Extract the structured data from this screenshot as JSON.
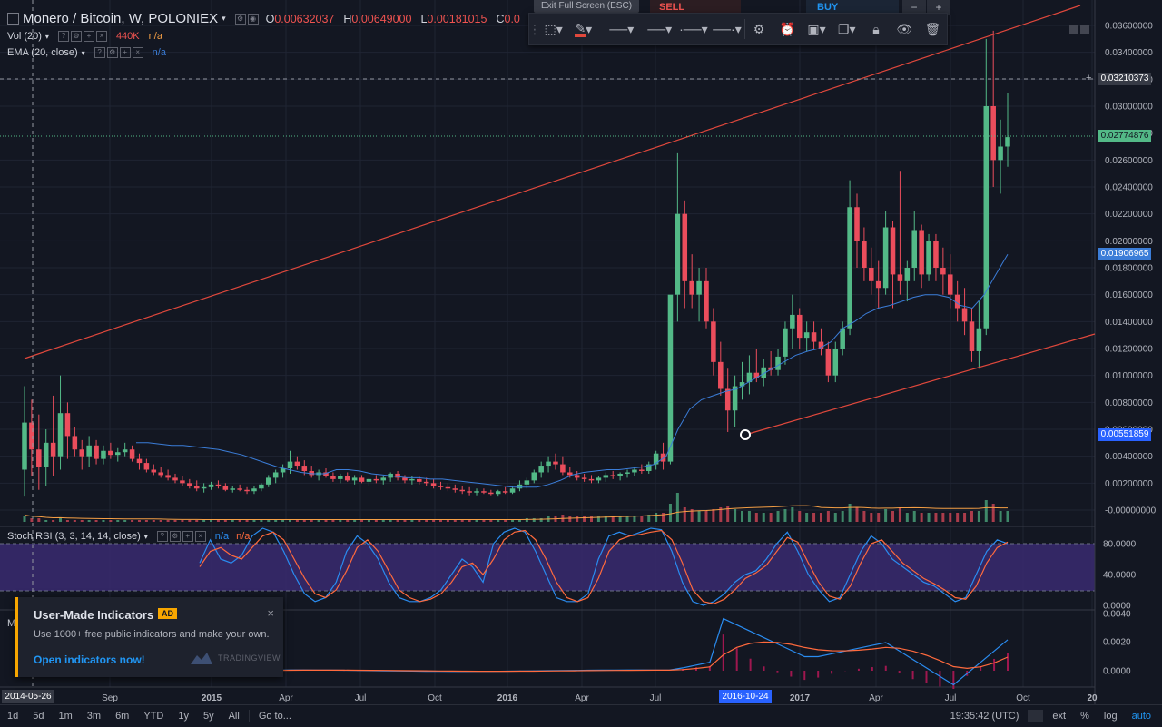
{
  "symbol": {
    "title": "Monero / Bitcoin, W, POLONIEX",
    "o_label": "O",
    "o": "0.00632037",
    "h_label": "H",
    "h": "0.00649000",
    "l_label": "L",
    "l": "0.00181015",
    "c_label": "C",
    "c": "0.0"
  },
  "vol_legend": {
    "label": "Vol (20)",
    "value": "440K",
    "na": "n/a"
  },
  "ema_legend": {
    "label": "EMA (20, close)",
    "na": "n/a"
  },
  "stoch_legend": {
    "label": "Stoch RSI (3, 3, 14, 14, close)",
    "v1": "n/a",
    "v2": "n/a"
  },
  "macd_legend": {
    "label": "M"
  },
  "top_buttons": {
    "exit_fullscreen": "Exit Full Screen (ESC)",
    "sell": "SELL",
    "buy": "BUY",
    "minus": "−",
    "plus": "+"
  },
  "price_axis": {
    "ticks": [
      "0.03600000",
      "0.03400000",
      "0.03200000",
      "0.03000000",
      "0.02800000",
      "0.02600000",
      "0.02400000",
      "0.02200000",
      "0.02000000",
      "0.01800000",
      "0.01600000",
      "0.01400000",
      "0.01200000",
      "0.01000000",
      "0.00800000",
      "0.00600000",
      "0.00400000",
      "0.00200000",
      "-0.00000000"
    ],
    "crosshair_price": "0.03210373",
    "last_price": "0.02774876",
    "ema_price": "0.01906965",
    "point_price": "0.00551859"
  },
  "stoch_axis": [
    "80.0000",
    "40.0000",
    "0.0000"
  ],
  "macd_axis": [
    "0.0040",
    "0.0020",
    "0.0000"
  ],
  "time_axis": {
    "ticks": [
      "Sep",
      "2015",
      "Apr",
      "Jul",
      "Oct",
      "2016",
      "Apr",
      "Jul",
      "2017",
      "Apr",
      "Jul",
      "Oct",
      "20"
    ],
    "left_date": "2014-05-26",
    "point_date": "2016-10-24"
  },
  "ad": {
    "title": "User-Made Indicators",
    "badge": "AD",
    "description": "Use 1000+ free public indicators and make your own.",
    "link": "Open indicators now!",
    "logo": "TRADINGVIEW",
    "close": "×"
  },
  "bottom_bar": {
    "timeframes": [
      "1d",
      "5d",
      "1m",
      "3m",
      "6m",
      "YTD",
      "1y",
      "5y",
      "All"
    ],
    "goto": "Go to...",
    "time": "19:35:42 (UTC)",
    "ext": "ext",
    "percent": "%",
    "log": "log",
    "auto": "auto"
  },
  "colors": {
    "up": "#53b987",
    "down": "#eb4d5c",
    "trendline": "#e0483c",
    "ema": "#3b7dd8",
    "volume_ma": "#f59f45",
    "stoch_k": "#2a8cf0",
    "stoch_d": "#ff6a3d",
    "stoch_band": "#3a2a70"
  },
  "chart_data": {
    "type": "candlestick",
    "title": "Monero / Bitcoin, W, POLONIEX",
    "ylim": [
      -0.0005,
      0.0375
    ],
    "candles_ohlc": [
      [
        0.003,
        0.0092,
        0.001,
        0.0065
      ],
      [
        0.0065,
        0.0082,
        0.0025,
        0.0045
      ],
      [
        0.0045,
        0.0071,
        0.0015,
        0.0032
      ],
      [
        0.0032,
        0.006,
        0.0018,
        0.005
      ],
      [
        0.005,
        0.0085,
        0.0025,
        0.004
      ],
      [
        0.004,
        0.01,
        0.003,
        0.0072
      ],
      [
        0.0072,
        0.008,
        0.0038,
        0.0055
      ],
      [
        0.0055,
        0.0062,
        0.004,
        0.0045
      ],
      [
        0.0045,
        0.0052,
        0.003,
        0.004
      ],
      [
        0.004,
        0.0055,
        0.0032,
        0.0048
      ],
      [
        0.0048,
        0.0052,
        0.0034,
        0.0038
      ],
      [
        0.0038,
        0.0048,
        0.0034,
        0.0044
      ],
      [
        0.0044,
        0.005,
        0.0038,
        0.0041
      ],
      [
        0.0041,
        0.0046,
        0.0036,
        0.0043
      ],
      [
        0.0043,
        0.005,
        0.004,
        0.0045
      ],
      [
        0.0045,
        0.0048,
        0.0036,
        0.0038
      ],
      [
        0.0038,
        0.0042,
        0.003,
        0.0035
      ],
      [
        0.0035,
        0.0038,
        0.0028,
        0.003
      ],
      [
        0.003,
        0.0034,
        0.0026,
        0.0028
      ],
      [
        0.0028,
        0.0032,
        0.0024,
        0.0026
      ],
      [
        0.0026,
        0.003,
        0.0022,
        0.0024
      ],
      [
        0.0024,
        0.0027,
        0.002,
        0.0022
      ],
      [
        0.0022,
        0.0025,
        0.0018,
        0.002
      ],
      [
        0.002,
        0.0023,
        0.0016,
        0.0018
      ],
      [
        0.0018,
        0.0022,
        0.0014,
        0.0016
      ],
      [
        0.0016,
        0.002,
        0.0013,
        0.0017
      ],
      [
        0.0017,
        0.0021,
        0.0015,
        0.0019
      ],
      [
        0.0019,
        0.0022,
        0.0016,
        0.0018
      ],
      [
        0.0018,
        0.002,
        0.0014,
        0.0015
      ],
      [
        0.0015,
        0.0018,
        0.0013,
        0.0016
      ],
      [
        0.0016,
        0.0019,
        0.0014,
        0.0015
      ],
      [
        0.0015,
        0.0017,
        0.0012,
        0.0014
      ],
      [
        0.0014,
        0.0018,
        0.0012,
        0.0016
      ],
      [
        0.0016,
        0.002,
        0.0014,
        0.0019
      ],
      [
        0.0019,
        0.0026,
        0.0017,
        0.0024
      ],
      [
        0.0024,
        0.003,
        0.002,
        0.0028
      ],
      [
        0.0028,
        0.0034,
        0.0024,
        0.0031
      ],
      [
        0.0031,
        0.0044,
        0.0027,
        0.0036
      ],
      [
        0.0036,
        0.004,
        0.003,
        0.0033
      ],
      [
        0.0033,
        0.0037,
        0.0026,
        0.0029
      ],
      [
        0.0029,
        0.0033,
        0.0024,
        0.0026
      ],
      [
        0.0026,
        0.003,
        0.0022,
        0.0028
      ],
      [
        0.0028,
        0.0031,
        0.0024,
        0.0025
      ],
      [
        0.0025,
        0.0028,
        0.0021,
        0.0023
      ],
      [
        0.0023,
        0.0027,
        0.002,
        0.0025
      ],
      [
        0.0025,
        0.0028,
        0.0021,
        0.0022
      ],
      [
        0.0022,
        0.0026,
        0.0019,
        0.0024
      ],
      [
        0.0024,
        0.0026,
        0.002,
        0.0021
      ],
      [
        0.0021,
        0.0024,
        0.0018,
        0.0023
      ],
      [
        0.0023,
        0.0026,
        0.002,
        0.0022
      ],
      [
        0.0022,
        0.0025,
        0.0019,
        0.0024
      ],
      [
        0.0024,
        0.0028,
        0.0021,
        0.0027
      ],
      [
        0.0027,
        0.0029,
        0.0022,
        0.0024
      ],
      [
        0.0024,
        0.0026,
        0.002,
        0.0022
      ],
      [
        0.0022,
        0.0025,
        0.0019,
        0.0023
      ],
      [
        0.0023,
        0.0025,
        0.0019,
        0.0021
      ],
      [
        0.0021,
        0.0024,
        0.0018,
        0.002
      ],
      [
        0.002,
        0.0023,
        0.0016,
        0.0018
      ],
      [
        0.0018,
        0.0021,
        0.0015,
        0.0017
      ],
      [
        0.0017,
        0.002,
        0.0014,
        0.0016
      ],
      [
        0.0016,
        0.0019,
        0.0013,
        0.0015
      ],
      [
        0.0015,
        0.0018,
        0.0012,
        0.0014
      ],
      [
        0.0014,
        0.0017,
        0.0011,
        0.0013
      ],
      [
        0.0013,
        0.0016,
        0.0011,
        0.0014
      ],
      [
        0.0014,
        0.0016,
        0.0012,
        0.0013
      ],
      [
        0.0013,
        0.0015,
        0.0011,
        0.0012
      ],
      [
        0.0012,
        0.0015,
        0.001,
        0.0014
      ],
      [
        0.0014,
        0.0017,
        0.0012,
        0.0013
      ],
      [
        0.0013,
        0.0018,
        0.0012,
        0.0016
      ],
      [
        0.0016,
        0.0022,
        0.0014,
        0.0019
      ],
      [
        0.0019,
        0.0024,
        0.0016,
        0.0022
      ],
      [
        0.0022,
        0.003,
        0.002,
        0.0028
      ],
      [
        0.0028,
        0.0036,
        0.0024,
        0.0033
      ],
      [
        0.0033,
        0.004,
        0.0028,
        0.0036
      ],
      [
        0.0036,
        0.0042,
        0.003,
        0.0034
      ],
      [
        0.0034,
        0.004,
        0.0026,
        0.0028
      ],
      [
        0.0028,
        0.0032,
        0.0024,
        0.0026
      ],
      [
        0.0026,
        0.0029,
        0.0022,
        0.0024
      ],
      [
        0.0024,
        0.0027,
        0.0021,
        0.0023
      ],
      [
        0.0023,
        0.0026,
        0.002,
        0.0022
      ],
      [
        0.0022,
        0.0025,
        0.002,
        0.0024
      ],
      [
        0.0024,
        0.0028,
        0.0021,
        0.0026
      ],
      [
        0.0026,
        0.0029,
        0.0023,
        0.0025
      ],
      [
        0.0025,
        0.0028,
        0.0022,
        0.0027
      ],
      [
        0.0027,
        0.003,
        0.0024,
        0.0028
      ],
      [
        0.0028,
        0.0032,
        0.0025,
        0.003
      ],
      [
        0.003,
        0.0034,
        0.0027,
        0.0029
      ],
      [
        0.0029,
        0.0036,
        0.0027,
        0.0034
      ],
      [
        0.0034,
        0.0044,
        0.003,
        0.0042
      ],
      [
        0.0042,
        0.005,
        0.003,
        0.0036
      ],
      [
        0.0036,
        0.0062,
        0.0034,
        0.016
      ],
      [
        0.016,
        0.0265,
        0.014,
        0.022
      ],
      [
        0.022,
        0.023,
        0.015,
        0.017
      ],
      [
        0.017,
        0.019,
        0.015,
        0.016
      ],
      [
        0.016,
        0.018,
        0.014,
        0.017
      ],
      [
        0.017,
        0.018,
        0.0135,
        0.014
      ],
      [
        0.014,
        0.015,
        0.01,
        0.011
      ],
      [
        0.011,
        0.0125,
        0.0085,
        0.009
      ],
      [
        0.009,
        0.0105,
        0.0058,
        0.0074
      ],
      [
        0.0074,
        0.01,
        0.0062,
        0.0092
      ],
      [
        0.0092,
        0.011,
        0.0082,
        0.0095
      ],
      [
        0.0095,
        0.0115,
        0.0086,
        0.0102
      ],
      [
        0.0102,
        0.012,
        0.0095,
        0.0098
      ],
      [
        0.0098,
        0.0112,
        0.0092,
        0.0106
      ],
      [
        0.0106,
        0.0118,
        0.01,
        0.0104
      ],
      [
        0.0104,
        0.012,
        0.01,
        0.0114
      ],
      [
        0.0114,
        0.014,
        0.0108,
        0.0135
      ],
      [
        0.0135,
        0.016,
        0.012,
        0.0145
      ],
      [
        0.0145,
        0.015,
        0.012,
        0.0128
      ],
      [
        0.0128,
        0.014,
        0.0118,
        0.0132
      ],
      [
        0.0132,
        0.014,
        0.012,
        0.0125
      ],
      [
        0.0125,
        0.0135,
        0.0115,
        0.012
      ],
      [
        0.012,
        0.0125,
        0.0095,
        0.01
      ],
      [
        0.01,
        0.0125,
        0.0095,
        0.012
      ],
      [
        0.012,
        0.014,
        0.0115,
        0.0135
      ],
      [
        0.0135,
        0.0245,
        0.013,
        0.0225
      ],
      [
        0.0225,
        0.0235,
        0.018,
        0.02
      ],
      [
        0.02,
        0.021,
        0.017,
        0.018
      ],
      [
        0.018,
        0.0195,
        0.016,
        0.017
      ],
      [
        0.017,
        0.0185,
        0.015,
        0.0165
      ],
      [
        0.0165,
        0.0222,
        0.016,
        0.021
      ],
      [
        0.021,
        0.0215,
        0.015,
        0.0175
      ],
      [
        0.0175,
        0.0252,
        0.016,
        0.017
      ],
      [
        0.017,
        0.0185,
        0.0155,
        0.018
      ],
      [
        0.018,
        0.0222,
        0.017,
        0.0208
      ],
      [
        0.0208,
        0.0212,
        0.0165,
        0.0175
      ],
      [
        0.0175,
        0.0205,
        0.017,
        0.02
      ],
      [
        0.02,
        0.0205,
        0.017,
        0.018
      ],
      [
        0.018,
        0.0195,
        0.016,
        0.0175
      ],
      [
        0.0175,
        0.019,
        0.015,
        0.016
      ],
      [
        0.016,
        0.017,
        0.014,
        0.015
      ],
      [
        0.015,
        0.0165,
        0.013,
        0.014
      ],
      [
        0.014,
        0.015,
        0.011,
        0.0118
      ],
      [
        0.0118,
        0.0155,
        0.0105,
        0.0135
      ],
      [
        0.0135,
        0.035,
        0.013,
        0.03
      ],
      [
        0.03,
        0.0356,
        0.024,
        0.026
      ],
      [
        0.026,
        0.029,
        0.0235,
        0.027
      ],
      [
        0.027,
        0.031,
        0.0255,
        0.0277
      ]
    ],
    "ema_20": [
      0.005,
      0.005,
      0.0049,
      0.0048,
      0.0048,
      0.0047,
      0.0046,
      0.0045,
      0.0043,
      0.0041,
      0.0038,
      0.0035,
      0.0032,
      0.003,
      0.0028,
      0.0027,
      0.0027,
      0.003,
      0.003,
      0.0029,
      0.0027,
      0.0026,
      0.0025,
      0.0024,
      0.0024,
      0.0023,
      0.0023,
      0.0022,
      0.0021,
      0.002,
      0.0019,
      0.0018,
      0.0017,
      0.0017,
      0.0017,
      0.0019,
      0.0022,
      0.0026,
      0.0028,
      0.0029,
      0.003,
      0.003,
      0.0031,
      0.0032,
      0.0034,
      0.004,
      0.006,
      0.0075,
      0.0082,
      0.0085,
      0.0088,
      0.009,
      0.0095,
      0.01,
      0.0105,
      0.011,
      0.0115,
      0.0118,
      0.012,
      0.0125,
      0.0135,
      0.014,
      0.0146,
      0.015,
      0.0152,
      0.0155,
      0.0158,
      0.016,
      0.016,
      0.0158,
      0.0152,
      0.015,
      0.016,
      0.0175,
      0.019
    ],
    "volume": [
      0.3,
      0.2,
      0.2,
      0.1,
      0.1,
      0.2,
      0.1,
      0.1,
      0.1,
      0.1,
      0.1,
      0.1,
      0.1,
      0.1,
      0.1,
      0.1,
      0.1,
      0.1,
      0.1,
      0.1,
      0.1,
      0.1,
      0.1,
      0.1,
      0.1,
      0.1,
      0.1,
      0.1,
      0.1,
      0.1,
      0.1,
      0.1,
      0.1,
      0.1,
      0.1,
      0.1,
      0.1,
      0.1,
      0.1,
      0.1,
      0.1,
      0.1,
      0.1,
      0.1,
      0.1,
      0.1,
      0.1,
      0.1,
      0.1,
      0.1,
      0.1,
      0.1,
      0.1,
      0.1,
      0.1,
      0.1,
      0.1,
      0.1,
      0.1,
      0.1,
      0.1,
      0.1,
      0.1,
      0.1,
      0.1,
      0.1,
      0.1,
      0.1,
      0.1,
      0.1,
      0.2,
      0.2,
      0.2,
      0.3,
      0.3,
      0.4,
      0.3,
      0.3,
      0.3,
      0.3,
      0.3,
      0.3,
      0.3,
      0.3,
      0.3,
      0.3,
      0.3,
      0.4,
      0.5,
      0.5,
      1.0,
      1.6,
      0.8,
      0.7,
      0.6,
      0.6,
      0.7,
      0.8,
      0.9,
      0.7,
      0.6,
      0.6,
      0.5,
      0.5,
      0.5,
      0.6,
      0.7,
      0.8,
      0.6,
      0.5,
      0.5,
      0.5,
      0.6,
      0.5,
      0.6,
      1.0,
      0.8,
      0.6,
      0.5,
      0.5,
      0.7,
      0.6,
      0.8,
      0.5,
      0.6,
      0.5,
      0.5,
      0.5,
      0.5,
      0.5,
      0.5,
      0.5,
      0.6,
      0.6,
      1.2,
      1.0,
      0.6,
      0.6
    ],
    "stoch_rsi_k": [
      55,
      85,
      60,
      55,
      65,
      90,
      100,
      95,
      70,
      40,
      15,
      5,
      10,
      30,
      70,
      90,
      80,
      60,
      30,
      10,
      5,
      5,
      10,
      20,
      40,
      60,
      50,
      30,
      80,
      95,
      100,
      95,
      70,
      40,
      10,
      5,
      5,
      15,
      60,
      90,
      95,
      90,
      95,
      100,
      98,
      70,
      30,
      5,
      0,
      5,
      15,
      30,
      40,
      45,
      60,
      80,
      95,
      70,
      40,
      20,
      5,
      10,
      40,
      70,
      90,
      80,
      60,
      50,
      40,
      30,
      25,
      15,
      5,
      10,
      40,
      70,
      85,
      80
    ],
    "stoch_rsi_d": [
      50,
      70,
      75,
      65,
      60,
      75,
      90,
      95,
      85,
      60,
      35,
      15,
      10,
      20,
      45,
      75,
      85,
      70,
      45,
      20,
      10,
      5,
      8,
      15,
      30,
      50,
      55,
      40,
      60,
      85,
      95,
      97,
      85,
      60,
      30,
      10,
      5,
      10,
      35,
      70,
      85,
      90,
      92,
      95,
      97,
      85,
      55,
      20,
      5,
      2,
      8,
      20,
      35,
      42,
      52,
      70,
      88,
      82,
      55,
      30,
      12,
      8,
      25,
      55,
      80,
      85,
      70,
      55,
      45,
      35,
      28,
      20,
      10,
      8,
      25,
      55,
      75,
      82
    ],
    "macd_axis_range": [
      -0.001,
      0.004
    ]
  }
}
